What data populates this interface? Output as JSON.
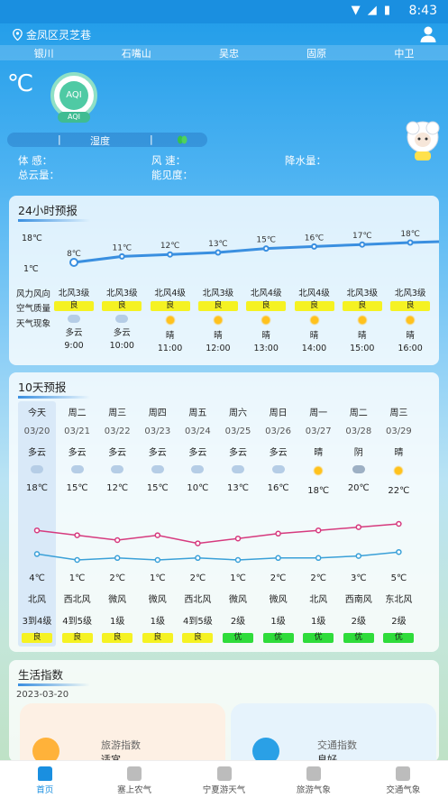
{
  "status": {
    "time": "8:43",
    "icons": "▼ ◢ ▮"
  },
  "location": "金凤区灵芝巷",
  "cities": [
    "银川",
    "石嘴山",
    "吴忠",
    "固原",
    "中卫"
  ],
  "current": {
    "unit": "℃",
    "aqi": "AQI",
    "aqi_label": "AQI",
    "humidity_label": "湿度",
    "sep": "|"
  },
  "details": {
    "feel": "体 感：",
    "wind": "风 速：",
    "rain": "降水量：",
    "cloud": "总云量：",
    "vis": "能见度："
  },
  "hourly": {
    "title": "24小时预报",
    "row_labels": [
      "风力风向",
      "空气质量",
      "天气现象"
    ],
    "scale_high": "18℃",
    "scale_low": "1℃",
    "items": [
      {
        "temp": "8℃",
        "wind": "北风3级",
        "aq": "良",
        "wx": "多云",
        "time": "9:00",
        "icon": "cloud-icon"
      },
      {
        "temp": "11℃",
        "wind": "北风3级",
        "aq": "良",
        "wx": "多云",
        "time": "10:00",
        "icon": "cloud-icon"
      },
      {
        "temp": "12℃",
        "wind": "北风4级",
        "aq": "良",
        "wx": "晴",
        "time": "11:00",
        "icon": "sun-icon"
      },
      {
        "temp": "13℃",
        "wind": "北风3级",
        "aq": "良",
        "wx": "晴",
        "time": "12:00",
        "icon": "sun-icon"
      },
      {
        "temp": "15℃",
        "wind": "北风4级",
        "aq": "良",
        "wx": "晴",
        "time": "13:00",
        "icon": "sun-icon"
      },
      {
        "temp": "16℃",
        "wind": "北风4级",
        "aq": "良",
        "wx": "晴",
        "time": "14:00",
        "icon": "sun-icon"
      },
      {
        "temp": "17℃",
        "wind": "北风3级",
        "aq": "良",
        "wx": "晴",
        "time": "15:00",
        "icon": "sun-icon"
      },
      {
        "temp": "18℃",
        "wind": "北风3级",
        "aq": "良",
        "wx": "晴",
        "time": "16:00",
        "icon": "sun-icon"
      }
    ]
  },
  "daily": {
    "title": "10天预报",
    "items": [
      {
        "day": "今天",
        "date": "03/20",
        "wx": "多云",
        "high": "18℃",
        "low": "4℃",
        "dir": "北风",
        "lvl": "3到4级",
        "aq": "良",
        "aq_color": "#f5f223",
        "icon": "cloud-icon"
      },
      {
        "day": "周二",
        "date": "03/21",
        "wx": "多云",
        "high": "15℃",
        "low": "1℃",
        "dir": "西北风",
        "lvl": "4到5级",
        "aq": "良",
        "aq_color": "#f5f223",
        "icon": "cloud-icon"
      },
      {
        "day": "周三",
        "date": "03/22",
        "wx": "多云",
        "high": "12℃",
        "low": "2℃",
        "dir": "微风",
        "lvl": "1级",
        "aq": "良",
        "aq_color": "#f5f223",
        "icon": "cloud-icon"
      },
      {
        "day": "周四",
        "date": "03/23",
        "wx": "多云",
        "high": "15℃",
        "low": "1℃",
        "dir": "微风",
        "lvl": "1级",
        "aq": "良",
        "aq_color": "#f5f223",
        "icon": "cloud-icon"
      },
      {
        "day": "周五",
        "date": "03/24",
        "wx": "多云",
        "high": "10℃",
        "low": "2℃",
        "dir": "西北风",
        "lvl": "4到5级",
        "aq": "良",
        "aq_color": "#f5f223",
        "icon": "cloud-icon"
      },
      {
        "day": "周六",
        "date": "03/25",
        "wx": "多云",
        "high": "13℃",
        "low": "1℃",
        "dir": "微风",
        "lvl": "2级",
        "aq": "优",
        "aq_color": "#2fdc3b",
        "icon": "cloud-icon"
      },
      {
        "day": "周日",
        "date": "03/26",
        "wx": "多云",
        "high": "16℃",
        "low": "2℃",
        "dir": "微风",
        "lvl": "1级",
        "aq": "优",
        "aq_color": "#2fdc3b",
        "icon": "cloud-icon"
      },
      {
        "day": "周一",
        "date": "03/27",
        "wx": "晴",
        "high": "18℃",
        "low": "2℃",
        "dir": "北风",
        "lvl": "1级",
        "aq": "优",
        "aq_color": "#2fdc3b",
        "icon": "sun-icon"
      },
      {
        "day": "周二",
        "date": "03/28",
        "wx": "阴",
        "high": "20℃",
        "low": "3℃",
        "dir": "西南风",
        "lvl": "2级",
        "aq": "优",
        "aq_color": "#2fdc3b",
        "icon": "overcast-icon"
      },
      {
        "day": "周三",
        "date": "03/29",
        "wx": "晴",
        "high": "22℃",
        "low": "5℃",
        "dir": "东北风",
        "lvl": "2级",
        "aq": "优",
        "aq_color": "#2fdc3b",
        "icon": "sun-icon"
      }
    ]
  },
  "life": {
    "title": "生活指数",
    "date": "2023-03-20",
    "travel_label": "旅游指数",
    "travel_value": "适宜",
    "traffic_label": "交通指数",
    "traffic_value": "良好"
  },
  "tabs": [
    "首页",
    "塞上农气",
    "宁夏游天气",
    "旅游气象",
    "交通气象"
  ],
  "colors": {
    "accent": "#1a8fe0",
    "high_line": "#d63a7e",
    "low_line": "#3aa0d8",
    "hourly_line": "#3a8fe0"
  }
}
